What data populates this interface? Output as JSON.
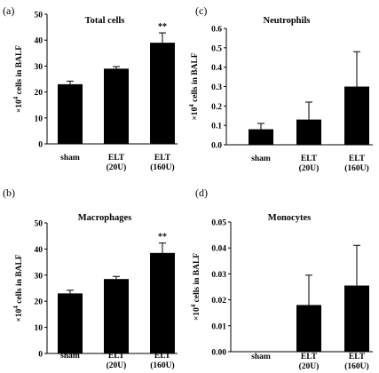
{
  "chart_data": [
    {
      "panel": "(a)",
      "type": "bar",
      "title": "Total cells",
      "ylabel_prefix": "×10",
      "ylabel_exp": "4",
      "ylabel_suffix": " cells  in BALF",
      "ylim": [
        0,
        50
      ],
      "yticks": [
        "0",
        "10",
        "20",
        "30",
        "40",
        "50"
      ],
      "tick_values": [
        0,
        10,
        20,
        30,
        40,
        50
      ],
      "categories": [
        {
          "line1": "sham",
          "line2": ""
        },
        {
          "line1": "ELT",
          "line2": "(20U)"
        },
        {
          "line1": "ELT",
          "line2": "(160U)"
        }
      ],
      "values": [
        23,
        29,
        39
      ],
      "errors": [
        1.2,
        0.8,
        3.8
      ],
      "annotations": [
        "",
        "",
        "**"
      ]
    },
    {
      "panel": "(b)",
      "type": "bar",
      "title": "Macrophages",
      "ylabel_prefix": "×10",
      "ylabel_exp": "4",
      "ylabel_suffix": " cells  in BALF",
      "ylim": [
        0,
        50
      ],
      "yticks": [
        "0",
        "10",
        "20",
        "30",
        "40",
        "50"
      ],
      "tick_values": [
        0,
        10,
        20,
        30,
        40,
        50
      ],
      "categories": [
        {
          "line1": "sham",
          "line2": ""
        },
        {
          "line1": "ELT",
          "line2": "(20U)"
        },
        {
          "line1": "ELT",
          "line2": "(160U)"
        }
      ],
      "values": [
        23,
        28.5,
        38.5
      ],
      "errors": [
        1.2,
        1.0,
        3.8
      ],
      "annotations": [
        "",
        "",
        "**"
      ]
    },
    {
      "panel": "(c)",
      "type": "bar",
      "title": "Neutrophils",
      "ylabel_prefix": "×10",
      "ylabel_exp": "4",
      "ylabel_suffix": " cells  in BALF",
      "ylim": [
        0,
        0.6
      ],
      "yticks": [
        "0.0",
        "0.1",
        "0.2",
        "0.3",
        "0.4",
        "0.5",
        "0.6"
      ],
      "tick_values": [
        0,
        0.1,
        0.2,
        0.3,
        0.4,
        0.5,
        0.6
      ],
      "categories": [
        {
          "line1": "sham",
          "line2": ""
        },
        {
          "line1": "ELT",
          "line2": "(20U)"
        },
        {
          "line1": "ELT",
          "line2": "(160U)"
        }
      ],
      "values": [
        0.08,
        0.13,
        0.3
      ],
      "errors": [
        0.03,
        0.09,
        0.18
      ],
      "annotations": [
        "",
        "",
        ""
      ]
    },
    {
      "panel": "(d)",
      "type": "bar",
      "title": "Monocytes",
      "ylabel_prefix": "×10",
      "ylabel_exp": "4",
      "ylabel_suffix": " cells  in BALF",
      "ylim": [
        0,
        0.05
      ],
      "yticks": [
        "0.00",
        "0.01",
        "0.02",
        "0.03",
        "0.04",
        "0.05"
      ],
      "tick_values": [
        0,
        0.01,
        0.02,
        0.03,
        0.04,
        0.05
      ],
      "categories": [
        {
          "line1": "sham",
          "line2": ""
        },
        {
          "line1": "ELT",
          "line2": "(20U)"
        },
        {
          "line1": "ELT",
          "line2": "(160U)"
        }
      ],
      "values": [
        0,
        0.018,
        0.0255
      ],
      "errors": [
        0,
        0.0115,
        0.0155
      ],
      "annotations": [
        "",
        "",
        ""
      ]
    }
  ]
}
